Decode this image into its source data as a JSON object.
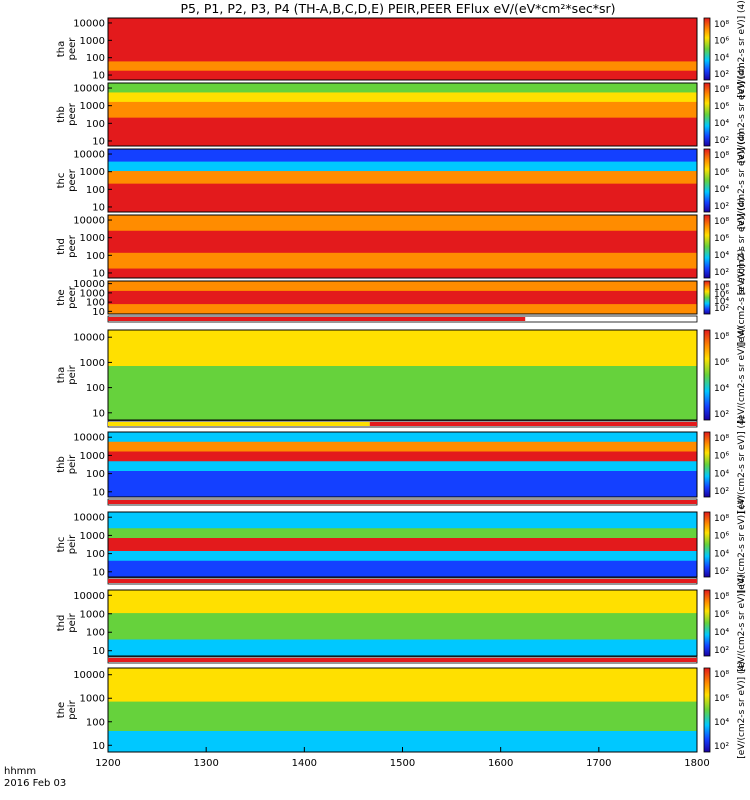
{
  "chart_data": {
    "type": "heatmap",
    "title": "P5, P1, P2, P3, P4 (TH-A,B,C,D,E) PEIR,PEER EFlux eV/(eV*cm²*sec*sr)",
    "time_label": "hhmm",
    "date_label": "2016 Feb 03",
    "x_ticks": [
      "1200",
      "1300",
      "1400",
      "1500",
      "1600",
      "1700",
      "1800"
    ],
    "x_range": [
      "1200",
      "1800"
    ],
    "y_scale": "log",
    "y_range": [
      6,
      20000
    ],
    "color_scale": "log",
    "colorbar_ticks": [
      "10⁸",
      "10⁶",
      "10⁴",
      "10²"
    ],
    "colorbar_label": "[eV/(cm2-s sr eV)] (4)",
    "colors": {
      "red": "#e31a1c",
      "orange": "#ff8c00",
      "yellow": "#ffe000",
      "green": "#66d23c",
      "cyan": "#00c8ff",
      "blue": "#1440ff",
      "black": "#000000"
    },
    "panels": [
      {
        "probe": "tha",
        "species": "peer",
        "yticks": [
          "10000",
          "1000",
          "100",
          "10"
        ]
      },
      {
        "probe": "thb",
        "species": "peer",
        "yticks": [
          "10000",
          "1000",
          "100",
          "10"
        ]
      },
      {
        "probe": "thc",
        "species": "peer",
        "yticks": [
          "10000",
          "1000",
          "100",
          "10"
        ]
      },
      {
        "probe": "thd",
        "species": "peer",
        "yticks": [
          "10000",
          "1000",
          "100",
          "10"
        ]
      },
      {
        "probe": "the",
        "species": "peer",
        "yticks": [
          "10000",
          "1000",
          "100",
          "10"
        ]
      },
      {
        "probe": "tha",
        "species": "peir",
        "yticks": [
          "10000",
          "1000",
          "100",
          "10"
        ]
      },
      {
        "probe": "thb",
        "species": "peir",
        "yticks": [
          "10000",
          "1000",
          "100",
          "10"
        ]
      },
      {
        "probe": "thc",
        "species": "peir",
        "yticks": [
          "10000",
          "1000",
          "100",
          "10"
        ]
      },
      {
        "probe": "thd",
        "species": "peir",
        "yticks": [
          "10000",
          "1000",
          "100",
          "10"
        ]
      },
      {
        "probe": "the",
        "species": "peir",
        "yticks": [
          "10000",
          "1000",
          "100",
          "10"
        ]
      }
    ],
    "data_gap_bars": [
      {
        "between": "the peer / tha peir",
        "segments": [
          {
            "from": "1200",
            "to": "1575",
            "color": "red"
          }
        ]
      },
      {
        "between": "tha peir / thb peir",
        "segments": [
          {
            "from": "1200",
            "to": "1440",
            "color": "yellow"
          },
          {
            "from": "1440",
            "to": "1800",
            "color": "red"
          }
        ]
      },
      {
        "between": "thb peir / thc peir",
        "segments": [
          {
            "from": "1200",
            "to": "1800",
            "color": "red"
          }
        ]
      },
      {
        "between": "thc peir / thd peir",
        "segments": [
          {
            "from": "1200",
            "to": "1800",
            "color": "red"
          }
        ]
      },
      {
        "between": "thd peir / the peir",
        "segments": [
          {
            "from": "1200",
            "to": "1800",
            "color": "red"
          }
        ]
      }
    ]
  }
}
